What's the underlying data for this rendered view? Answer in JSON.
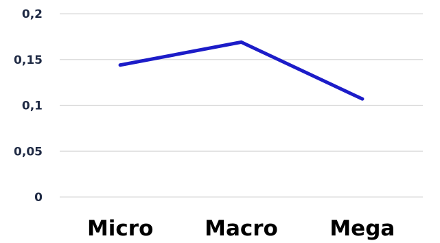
{
  "chart_data": {
    "type": "line",
    "categories": [
      "Micro",
      "Macro",
      "Mega"
    ],
    "series": [
      {
        "values": [
          0.144,
          0.169,
          0.107
        ],
        "color": "#1c1cc8"
      }
    ],
    "yticks": [
      {
        "value": 0,
        "label": "0"
      },
      {
        "value": 0.05,
        "label": "0,05"
      },
      {
        "value": 0.1,
        "label": "0,1"
      },
      {
        "value": 0.15,
        "label": "0,15"
      },
      {
        "value": 0.2,
        "label": "0,2"
      }
    ],
    "ylim": [
      0,
      0.2
    ],
    "grid": true,
    "legend": "none"
  }
}
